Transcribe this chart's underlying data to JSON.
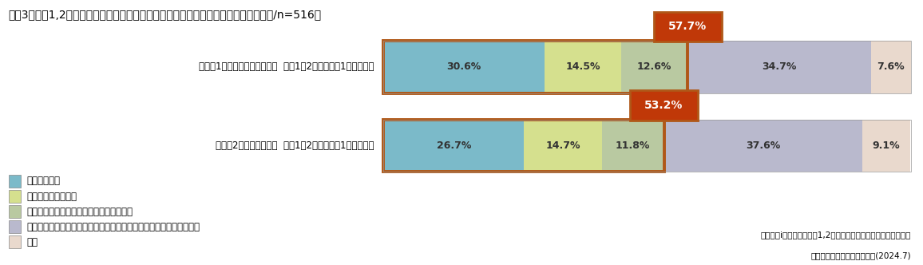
{
  "title": "【図3】大学1,2年生向けのキャリア形成支援にかかわる施策実施について（複数回答/n=516）",
  "rows": [
    {
      "label": "タイプ1：オープンカンパニー  大学1，2年生（修士1年生）向け",
      "values": [
        30.6,
        14.5,
        12.6,
        34.7,
        7.6
      ],
      "badge_text": "57.7%"
    },
    {
      "label": "タイプ2：キャリア教育  大学1，2年生（修士1年生）向け",
      "values": [
        26.7,
        14.7,
        11.8,
        37.6,
        9.1
      ],
      "badge_text": "53.2%"
    }
  ],
  "colors": [
    "#7bbac9",
    "#d5e08e",
    "#b9c9a1",
    "#b9b9cd",
    "#e9d9cd"
  ],
  "border_color": "#b05818",
  "badge_bg": "#c03808",
  "badge_text_color": "#ffffff",
  "bar_text_color": "#333333",
  "legend_labels": [
    "実施している",
    "実施を予定している",
    "実施を検討している（検討したいも含む）",
    "実施していない（過去実施していたが現在は実施していないも含む）",
    "不明"
  ],
  "footnote_line1": "ベネッセiキャリア『大学1,2年生向けのキャリア形成』に関する",
  "footnote_line2": "企業担当者の意識・実態調査(2024.7)",
  "font_size_title": 10,
  "font_size_bar": 9,
  "font_size_legend": 8.5,
  "font_size_badge": 10,
  "font_size_label": 8.5,
  "font_size_footnote": 7.5
}
